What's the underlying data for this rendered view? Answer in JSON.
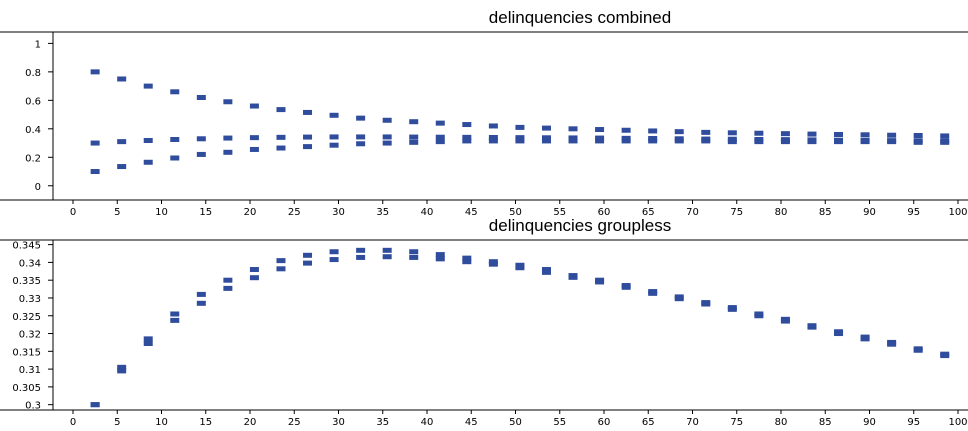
{
  "mark_color": "#2f4d9c",
  "chart_data": [
    {
      "type": "scatter",
      "title": "delinquencies combined",
      "xlabel": "",
      "ylabel": "",
      "xlim": [
        -5,
        100
      ],
      "ylim": [
        -0.1,
        1.08
      ],
      "x_ticks": [
        0,
        5,
        10,
        15,
        20,
        25,
        30,
        35,
        40,
        45,
        50,
        55,
        60,
        65,
        70,
        75,
        80,
        85,
        90,
        95,
        100
      ],
      "y_ticks": [
        0,
        0.2,
        0.4,
        0.6,
        0.8,
        1
      ],
      "y_tick_labels": [
        "0",
        "0.2",
        "0.4",
        "0.6",
        "0.8",
        "1"
      ],
      "grid": false,
      "legend": "none",
      "x": [
        2.5,
        5.5,
        8.5,
        11.5,
        14.5,
        17.5,
        20.5,
        23.5,
        26.5,
        29.5,
        32.5,
        35.5,
        38.5,
        41.5,
        44.5,
        47.5,
        50.5,
        53.5,
        56.5,
        59.5,
        62.5,
        65.5,
        68.5,
        71.5,
        74.5,
        77.5,
        80.5,
        83.5,
        86.5,
        89.5,
        92.5,
        95.5,
        98.5
      ],
      "series": [
        {
          "values": [
            0.8,
            0.75,
            0.7,
            0.66,
            0.62,
            0.59,
            0.56,
            0.535,
            0.515,
            0.495,
            0.475,
            0.46,
            0.45,
            0.44,
            0.43,
            0.42,
            0.41,
            0.405,
            0.4,
            0.395,
            0.39,
            0.385,
            0.38,
            0.375,
            0.372,
            0.369,
            0.366,
            0.363,
            0.36,
            0.358,
            0.355,
            0.353,
            0.35
          ]
        },
        {
          "values": [
            0.3,
            0.31,
            0.318,
            0.325,
            0.33,
            0.335,
            0.338,
            0.34,
            0.342,
            0.343,
            0.343,
            0.343,
            0.342,
            0.341,
            0.34,
            0.339,
            0.338,
            0.337,
            0.336,
            0.335,
            0.333,
            0.332,
            0.33,
            0.328,
            0.327,
            0.325,
            0.324,
            0.322,
            0.32,
            0.319,
            0.317,
            0.316,
            0.314
          ]
        },
        {
          "values": [
            0.1,
            0.135,
            0.165,
            0.195,
            0.22,
            0.235,
            0.255,
            0.265,
            0.275,
            0.285,
            0.295,
            0.3,
            0.305,
            0.31,
            0.315,
            0.315,
            0.315,
            0.315,
            0.315,
            0.315,
            0.315,
            0.315,
            0.315,
            0.315,
            0.31,
            0.31,
            0.31,
            0.31,
            0.31,
            0.31,
            0.31,
            0.305,
            0.305
          ]
        }
      ]
    },
    {
      "type": "scatter",
      "title": "delinquencies groupless",
      "xlabel": "",
      "ylabel": "",
      "xlim": [
        -5,
        100
      ],
      "ylim": [
        0.2985,
        0.3463
      ],
      "x_ticks": [
        0,
        5,
        10,
        15,
        20,
        25,
        30,
        35,
        40,
        45,
        50,
        55,
        60,
        65,
        70,
        75,
        80,
        85,
        90,
        95,
        100
      ],
      "y_ticks": [
        0.3,
        0.305,
        0.31,
        0.315,
        0.32,
        0.325,
        0.33,
        0.335,
        0.34,
        0.345
      ],
      "y_tick_labels": [
        "0.3",
        "0.305",
        "0.31",
        "0.315",
        "0.32",
        "0.325",
        "0.33",
        "0.335",
        "0.34",
        "0.345"
      ],
      "grid": false,
      "legend": "none",
      "x": [
        2.5,
        5.5,
        8.5,
        11.5,
        14.5,
        17.5,
        20.5,
        23.5,
        26.5,
        29.5,
        32.5,
        35.5,
        38.5,
        41.5,
        44.5,
        47.5,
        50.5,
        53.5,
        56.5,
        59.5,
        62.5,
        65.5,
        68.5,
        71.5,
        74.5,
        77.5,
        80.5,
        83.5,
        86.5,
        89.5,
        92.5,
        95.5,
        98.5
      ],
      "series": [
        {
          "values": [
            0.3,
            0.3105,
            0.3185,
            0.3255,
            0.331,
            0.335,
            0.338,
            0.3405,
            0.342,
            0.343,
            0.3434,
            0.3434,
            0.343,
            0.3422,
            0.3412,
            0.3402,
            0.3392,
            0.338,
            0.3363,
            0.335,
            0.3335,
            0.3318,
            0.3303,
            0.3287,
            0.3273,
            0.3255,
            0.324,
            0.3222,
            0.3205,
            0.319,
            0.3175,
            0.3157,
            0.3142
          ]
        },
        {
          "values": [
            0.3,
            0.3095,
            0.3172,
            0.3237,
            0.3285,
            0.3327,
            0.3357,
            0.3382,
            0.3398,
            0.3408,
            0.3414,
            0.3416,
            0.3414,
            0.341,
            0.3402,
            0.3395,
            0.3385,
            0.3372,
            0.3358,
            0.3345,
            0.333,
            0.3313,
            0.3298,
            0.3283,
            0.3268,
            0.325,
            0.3235,
            0.3218,
            0.32,
            0.3185,
            0.317,
            0.3153,
            0.3138
          ]
        }
      ]
    }
  ]
}
